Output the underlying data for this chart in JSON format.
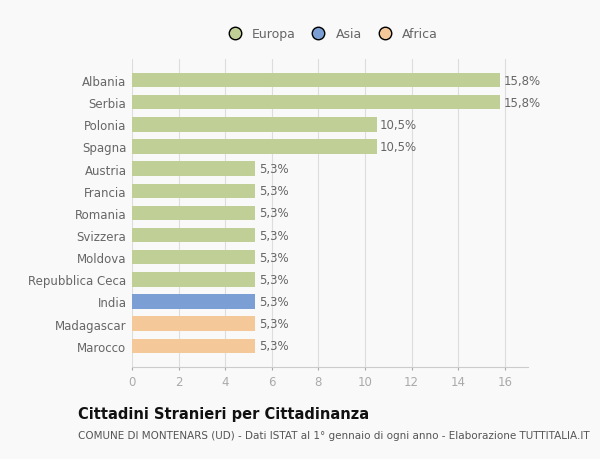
{
  "categories": [
    "Marocco",
    "Madagascar",
    "India",
    "Repubblica Ceca",
    "Moldova",
    "Svizzera",
    "Romania",
    "Francia",
    "Austria",
    "Spagna",
    "Polonia",
    "Serbia",
    "Albania"
  ],
  "values": [
    5.3,
    5.3,
    5.3,
    5.3,
    5.3,
    5.3,
    5.3,
    5.3,
    5.3,
    10.5,
    10.5,
    15.8,
    15.8
  ],
  "labels": [
    "5,3%",
    "5,3%",
    "5,3%",
    "5,3%",
    "5,3%",
    "5,3%",
    "5,3%",
    "5,3%",
    "5,3%",
    "10,5%",
    "10,5%",
    "15,8%",
    "15,8%"
  ],
  "colors": [
    "#f5c89a",
    "#f5c89a",
    "#7b9fd4",
    "#bfcf96",
    "#bfcf96",
    "#bfcf96",
    "#bfcf96",
    "#bfcf96",
    "#bfcf96",
    "#bfcf96",
    "#bfcf96",
    "#bfcf96",
    "#bfcf96"
  ],
  "legend": {
    "Europa": "#bfcf96",
    "Asia": "#7b9fd4",
    "Africa": "#f5c89a"
  },
  "xlim": [
    0,
    17
  ],
  "xticks": [
    0,
    2,
    4,
    6,
    8,
    10,
    12,
    14,
    16
  ],
  "title": "Cittadini Stranieri per Cittadinanza",
  "subtitle": "COMUNE DI MONTENARS (UD) - Dati ISTAT al 1° gennaio di ogni anno - Elaborazione TUTTITALIA.IT",
  "background_color": "#f9f9f9",
  "bar_height": 0.65,
  "label_fontsize": 8.5,
  "axis_fontsize": 8.5,
  "title_fontsize": 10.5,
  "subtitle_fontsize": 7.5,
  "legend_fontsize": 9
}
